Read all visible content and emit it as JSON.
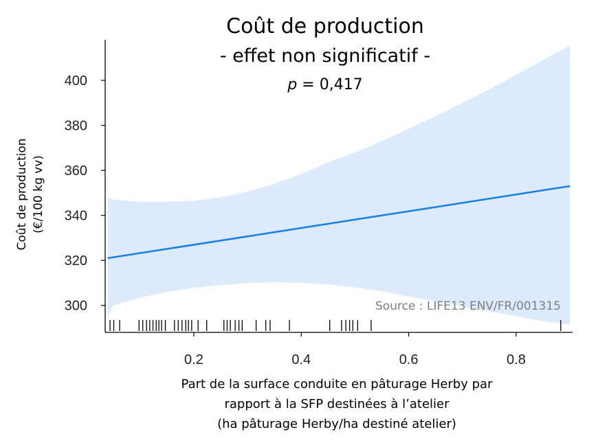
{
  "chart_data": {
    "type": "line",
    "title": "Coût de production",
    "subtitle": "- effet non significatif -",
    "p_value": {
      "label": "p",
      "text": " = 0,417"
    },
    "ylabel_lines": [
      "Coût de production",
      "(€/100 kg vv)"
    ],
    "xlabel_lines": [
      "Part de la surface conduite en pâturage Herby par",
      "rapport à la SFP destinées à l’atelier",
      "(ha pâturage Herby/ha destiné atelier)"
    ],
    "source": "Source : LIFE13 ENV/FR/001315",
    "x_ticks": [
      "0.2",
      "0.4",
      "0.6",
      "0.8"
    ],
    "y_ticks": [
      "300",
      "320",
      "340",
      "360",
      "380",
      "400"
    ],
    "xlim": [
      0.035,
      0.905
    ],
    "ylim": [
      288,
      418
    ],
    "grid": false,
    "colors": {
      "line": "#1a7fe6",
      "band": "#dcebfc",
      "rug": "#000000"
    },
    "fit": {
      "x": [
        0.04,
        0.9
      ],
      "y": [
        321,
        353
      ]
    },
    "band": {
      "x": [
        0.04,
        0.05,
        0.1,
        0.15,
        0.2,
        0.25,
        0.3,
        0.35,
        0.4,
        0.45,
        0.5,
        0.55,
        0.6,
        0.65,
        0.7,
        0.75,
        0.8,
        0.85,
        0.9
      ],
      "lower": [
        295.0,
        300.0,
        303.5,
        306.0,
        307.8,
        309.0,
        310.0,
        310.2,
        310.0,
        309.3,
        308.0,
        306.3,
        304.0,
        301.8,
        299.5,
        297.3,
        295.3,
        293.0,
        291.5
      ],
      "upper": [
        348.0,
        347.0,
        346.0,
        346.0,
        346.5,
        348.0,
        350.5,
        354.0,
        358.5,
        363.5,
        368.0,
        373.0,
        378.5,
        384.0,
        390.0,
        396.0,
        402.5,
        409.0,
        415.5
      ]
    },
    "rug": [
      0.044,
      0.051,
      0.062,
      0.098,
      0.105,
      0.112,
      0.118,
      0.124,
      0.13,
      0.135,
      0.14,
      0.147,
      0.164,
      0.171,
      0.178,
      0.185,
      0.19,
      0.196,
      0.208,
      0.224,
      0.256,
      0.262,
      0.268,
      0.277,
      0.284,
      0.29,
      0.316,
      0.334,
      0.342,
      0.378,
      0.453,
      0.475,
      0.483,
      0.49,
      0.496,
      0.505,
      0.53,
      0.883
    ]
  }
}
